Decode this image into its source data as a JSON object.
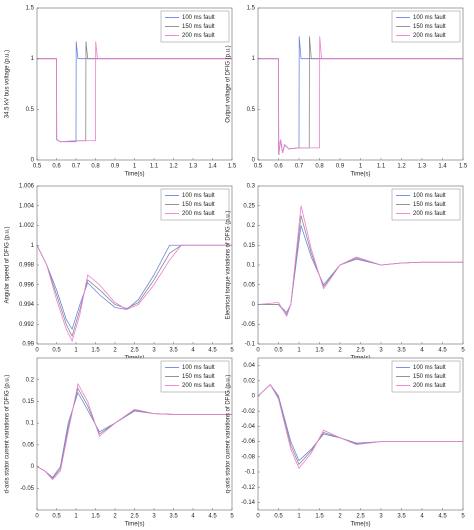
{
  "chart_data": [
    {
      "type": "line",
      "ylabel": "34.5 kV bus voltage (p.u.)",
      "xlabel": "Time(s)",
      "xlim": [
        0.5,
        1.5
      ],
      "xticks": [
        0.5,
        0.6,
        0.7,
        0.8,
        0.9,
        1,
        1.1,
        1.2,
        1.3,
        1.4,
        1.5
      ],
      "ylim": [
        0,
        1.5
      ],
      "yticks": [
        0,
        0.5,
        1,
        1.5
      ],
      "legend": "upper right",
      "x": [
        0.5,
        0.6,
        0.601,
        0.62,
        0.7,
        0.701,
        0.71,
        0.75,
        0.751,
        0.76,
        0.8,
        0.801,
        0.81,
        0.85,
        1.5
      ],
      "series": [
        {
          "name": "100 ms fault",
          "color": "#6f86e0",
          "values": [
            1,
            1,
            0.2,
            0.18,
            0.18,
            1.17,
            1.0,
            1.0,
            1.0,
            1.0,
            1.0,
            1.0,
            1.0,
            1.0,
            1.0
          ]
        },
        {
          "name": "150 ms fault",
          "color": "#8a8a8a",
          "values": [
            1,
            1,
            0.2,
            0.18,
            0.19,
            0.19,
            0.19,
            0.19,
            1.17,
            1.0,
            1.0,
            1.0,
            1.0,
            1.0,
            1.0
          ]
        },
        {
          "name": "200 ms fault",
          "color": "#ee7fd0",
          "values": [
            1,
            1,
            0.2,
            0.18,
            0.19,
            0.19,
            0.19,
            0.19,
            0.19,
            0.19,
            0.19,
            1.17,
            1.0,
            1.0,
            1.0
          ]
        }
      ]
    },
    {
      "type": "line",
      "ylabel": "Output voltage of DFIG (p.u.)",
      "xlabel": "Time(s)",
      "xlim": [
        0.5,
        1.5
      ],
      "xticks": [
        0.5,
        0.6,
        0.7,
        0.8,
        0.9,
        1,
        1.1,
        1.2,
        1.3,
        1.4,
        1.5
      ],
      "ylim": [
        0,
        1.5
      ],
      "yticks": [
        0,
        0.5,
        1,
        1.5
      ],
      "legend": "upper right",
      "x": [
        0.5,
        0.6,
        0.601,
        0.61,
        0.62,
        0.63,
        0.65,
        0.7,
        0.701,
        0.71,
        0.75,
        0.751,
        0.76,
        0.8,
        0.801,
        0.81,
        0.85,
        1.5
      ],
      "series": [
        {
          "name": "100 ms fault",
          "color": "#6f86e0",
          "values": [
            1,
            1,
            0.05,
            0.2,
            0.07,
            0.15,
            0.11,
            0.12,
            1.22,
            1.0,
            1.0,
            1.0,
            1.0,
            1.0,
            1.0,
            1.0,
            1.0,
            1.0
          ]
        },
        {
          "name": "150 ms fault",
          "color": "#8a8a8a",
          "values": [
            1,
            1,
            0.05,
            0.2,
            0.07,
            0.15,
            0.11,
            0.12,
            0.12,
            0.12,
            0.12,
            1.22,
            1.0,
            1.0,
            1.0,
            1.0,
            1.0,
            1.0
          ]
        },
        {
          "name": "200 ms fault",
          "color": "#ee7fd0",
          "values": [
            1,
            1,
            0.05,
            0.2,
            0.07,
            0.15,
            0.11,
            0.12,
            0.12,
            0.12,
            0.12,
            0.12,
            0.12,
            0.12,
            1.22,
            1.0,
            1.0,
            1.0
          ]
        }
      ]
    },
    {
      "type": "line",
      "ylabel": "Angular speed of DFIG (p.u.)",
      "xlabel": "Time(s)",
      "xlim": [
        0,
        5
      ],
      "xticks": [
        0,
        0.5,
        1,
        1.5,
        2,
        2.5,
        3,
        3.5,
        4,
        4.5,
        5
      ],
      "ylim": [
        0.99,
        1.006
      ],
      "yticks": [
        0.99,
        0.992,
        0.994,
        0.996,
        0.998,
        1,
        1.002,
        1.004,
        1.006
      ],
      "legend": "upper right",
      "x": [
        0,
        0.25,
        0.5,
        0.75,
        0.9,
        1.1,
        1.3,
        1.6,
        2.0,
        2.3,
        2.6,
        3.0,
        3.4,
        3.7,
        4,
        5
      ],
      "series": [
        {
          "name": "100 ms fault",
          "color": "#6f86e0",
          "values": [
            1,
            0.998,
            0.9955,
            0.9925,
            0.9915,
            0.994,
            0.9962,
            0.995,
            0.9937,
            0.9935,
            0.9945,
            0.997,
            1,
            1,
            1,
            1
          ]
        },
        {
          "name": "150 ms fault",
          "color": "#8a8a8a",
          "values": [
            1,
            0.998,
            0.995,
            0.992,
            0.9908,
            0.9935,
            0.9965,
            0.9955,
            0.994,
            0.9936,
            0.9942,
            0.9965,
            0.9992,
            1,
            1,
            1
          ]
        },
        {
          "name": "200 ms fault",
          "color": "#ee7fd0",
          "values": [
            1,
            0.998,
            0.9945,
            0.9915,
            0.9903,
            0.993,
            0.997,
            0.996,
            0.9942,
            0.9935,
            0.994,
            0.996,
            0.9985,
            1,
            1,
            1
          ]
        }
      ]
    },
    {
      "type": "line",
      "ylabel": "Electrical torque variations of DFIG (p.u.)",
      "xlabel": "Time(s)",
      "xlim": [
        0,
        5
      ],
      "xticks": [
        0,
        0.5,
        1,
        1.5,
        2,
        2.5,
        3,
        3.5,
        4,
        4.5,
        5
      ],
      "ylim": [
        -0.1,
        0.3
      ],
      "yticks": [
        -0.1,
        -0.05,
        0,
        0.05,
        0.1,
        0.15,
        0.2,
        0.25,
        0.3
      ],
      "legend": "upper right",
      "x": [
        0,
        0.5,
        0.7,
        0.8,
        1.05,
        1.3,
        1.6,
        2.0,
        2.4,
        3.0,
        3.5,
        4,
        5
      ],
      "series": [
        {
          "name": "100 ms fault",
          "color": "#6f86e0",
          "values": [
            0,
            0,
            -0.02,
            0,
            0.2,
            0.12,
            0.05,
            0.1,
            0.115,
            0.1,
            0.105,
            0.107,
            0.107
          ]
        },
        {
          "name": "150 ms fault",
          "color": "#8a8a8a",
          "values": [
            0,
            0,
            -0.025,
            0,
            0.225,
            0.13,
            0.045,
            0.1,
            0.118,
            0.1,
            0.105,
            0.107,
            0.107
          ]
        },
        {
          "name": "200 ms fault",
          "color": "#ee7fd0",
          "values": [
            0,
            0.005,
            -0.03,
            0,
            0.25,
            0.14,
            0.04,
            0.1,
            0.12,
            0.1,
            0.105,
            0.107,
            0.107
          ]
        }
      ]
    },
    {
      "type": "line",
      "ylabel": "d-axis stator current variations of DFIG (p.u.)",
      "xlabel": "Time(s)",
      "xlim": [
        0,
        5
      ],
      "xticks": [
        0,
        0.5,
        1,
        1.5,
        2,
        2.5,
        3,
        3.5,
        4,
        4.5,
        5
      ],
      "ylim": [
        -0.1,
        0.25
      ],
      "yticks": [
        -0.05,
        0,
        0.05,
        0.1,
        0.15,
        0.2
      ],
      "legend": "upper right",
      "x": [
        0,
        0.2,
        0.4,
        0.6,
        0.8,
        1.05,
        1.3,
        1.6,
        2.0,
        2.5,
        3,
        3.5,
        5
      ],
      "series": [
        {
          "name": "100 ms fault",
          "color": "#6f86e0",
          "values": [
            0,
            -0.01,
            -0.025,
            0,
            0.1,
            0.17,
            0.13,
            0.08,
            0.1,
            0.128,
            0.122,
            0.12,
            0.12
          ]
        },
        {
          "name": "150 ms fault",
          "color": "#8a8a8a",
          "values": [
            0,
            -0.01,
            -0.027,
            -0.005,
            0.09,
            0.18,
            0.14,
            0.075,
            0.1,
            0.13,
            0.122,
            0.12,
            0.12
          ]
        },
        {
          "name": "200 ms fault",
          "color": "#ee7fd0",
          "values": [
            0,
            -0.01,
            -0.03,
            -0.01,
            0.08,
            0.19,
            0.15,
            0.07,
            0.1,
            0.132,
            0.122,
            0.12,
            0.12
          ]
        }
      ]
    },
    {
      "type": "line",
      "ylabel": "q-axis stator current variations of DFIG (p.u.)",
      "xlabel": "Time(s)",
      "xlim": [
        0,
        5
      ],
      "xticks": [
        0,
        0.5,
        1,
        1.5,
        2,
        2.5,
        3,
        3.5,
        4,
        4.5,
        5
      ],
      "ylim": [
        -0.15,
        0.05
      ],
      "yticks": [
        -0.14,
        -0.12,
        -0.1,
        -0.08,
        -0.06,
        -0.04,
        -0.02,
        0,
        0.02,
        0.04
      ],
      "legend": "upper right",
      "x": [
        0,
        0.3,
        0.5,
        0.8,
        1.0,
        1.3,
        1.6,
        2.0,
        2.4,
        3,
        5
      ],
      "series": [
        {
          "name": "100 ms fault",
          "color": "#6f86e0",
          "values": [
            0,
            0.015,
            0,
            -0.06,
            -0.085,
            -0.07,
            -0.05,
            -0.055,
            -0.062,
            -0.06,
            -0.06
          ]
        },
        {
          "name": "150 ms fault",
          "color": "#8a8a8a",
          "values": [
            0,
            0.015,
            -0.002,
            -0.065,
            -0.09,
            -0.072,
            -0.048,
            -0.055,
            -0.063,
            -0.06,
            -0.06
          ]
        },
        {
          "name": "200 ms fault",
          "color": "#ee7fd0",
          "values": [
            0,
            0.015,
            -0.004,
            -0.07,
            -0.095,
            -0.075,
            -0.045,
            -0.055,
            -0.064,
            -0.06,
            -0.06
          ]
        }
      ]
    }
  ]
}
